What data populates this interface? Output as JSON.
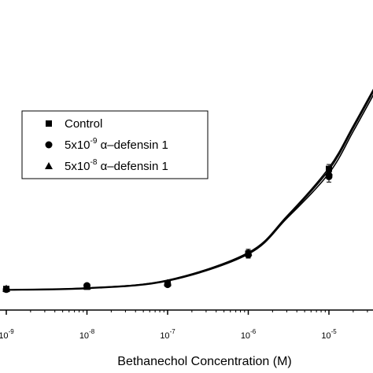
{
  "chart_data": {
    "type": "scatter",
    "title": "",
    "xlabel": "Bethanechol Concentration (M)",
    "ylabel": "",
    "x_scale": "log",
    "xlim": [
      1e-09,
      5e-05
    ],
    "ylim": [
      0,
      100
    ],
    "grid": false,
    "legend_placement": "center-left",
    "x_ticks": [
      {
        "base": "10",
        "exp": "-9",
        "value": 1e-09
      },
      {
        "base": "10",
        "exp": "-8",
        "value": 1e-08
      },
      {
        "base": "10",
        "exp": "-7",
        "value": 1e-07
      },
      {
        "base": "10",
        "exp": "-6",
        "value": 1e-06
      },
      {
        "base": "10",
        "exp": "-5",
        "value": 1e-05
      }
    ],
    "x": [
      1e-09,
      1e-08,
      1e-07,
      1e-06,
      1e-05
    ],
    "series": [
      {
        "marker": "square",
        "legend_parts": [
          "Control"
        ],
        "values": [
          1.0,
          2.0,
          3.5,
          17.0,
          55.5
        ],
        "errors": [
          0.5,
          0.5,
          0.8,
          1.5,
          2.0
        ],
        "fit": [
          [
            1e-09,
            0.6
          ],
          [
            1e-08,
            1.4
          ],
          [
            1e-07,
            5.0
          ],
          [
            1e-06,
            17.5
          ],
          [
            3e-06,
            34.0
          ],
          [
            1e-05,
            56.0
          ],
          [
            2e-05,
            75.0
          ],
          [
            4e-05,
            95.0
          ]
        ]
      },
      {
        "marker": "circle",
        "legend_parts": [
          "5x10",
          "-9",
          " α–defensin 1"
        ],
        "values": [
          0.8,
          2.5,
          3.0,
          16.5,
          52.0
        ],
        "errors": [
          0.5,
          0.5,
          0.8,
          1.5,
          2.5
        ],
        "fit": [
          [
            1e-09,
            0.5
          ],
          [
            1e-08,
            1.2
          ],
          [
            1e-07,
            4.6
          ],
          [
            1e-06,
            16.8
          ],
          [
            3e-06,
            33.0
          ],
          [
            1e-05,
            53.5
          ],
          [
            2e-05,
            72.5
          ],
          [
            4e-05,
            92.5
          ]
        ]
      },
      {
        "marker": "triangle",
        "legend_parts": [
          "5x10",
          "-8",
          "  α–defensin 1"
        ],
        "values": [
          1.2,
          2.2,
          3.8,
          17.5,
          54.0
        ],
        "errors": [
          0.5,
          0.5,
          0.8,
          1.5,
          2.0
        ],
        "fit": [
          [
            1e-09,
            0.7
          ],
          [
            1e-08,
            1.5
          ],
          [
            1e-07,
            4.9
          ],
          [
            1e-06,
            17.2
          ],
          [
            3e-06,
            33.5
          ],
          [
            1e-05,
            55.0
          ],
          [
            2e-05,
            74.0
          ],
          [
            4e-05,
            94.0
          ]
        ]
      }
    ]
  }
}
